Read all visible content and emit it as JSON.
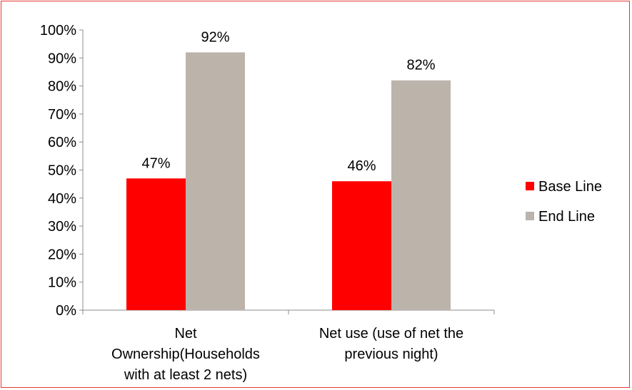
{
  "chart_data": {
    "type": "bar",
    "title": "",
    "xlabel": "",
    "ylabel": "",
    "categories": [
      [
        "Net",
        "Ownership(Households",
        "with at least 2 nets)"
      ],
      [
        "Net use (use of net the",
        "previous night)"
      ]
    ],
    "series": [
      {
        "name": "Base Line",
        "values": [
          47,
          46
        ],
        "color": "#ff0000"
      },
      {
        "name": "End Line",
        "values": [
          92,
          82
        ],
        "color": "#bcb4ab"
      }
    ],
    "data_labels": [
      [
        "47%",
        "46%"
      ],
      [
        "92%",
        "82%"
      ]
    ],
    "y_ticks": [
      "0%",
      "10%",
      "20%",
      "30%",
      "40%",
      "50%",
      "60%",
      "70%",
      "80%",
      "90%",
      "100%"
    ],
    "ylim": [
      0,
      100
    ],
    "grid": false,
    "legend_position": "right"
  }
}
